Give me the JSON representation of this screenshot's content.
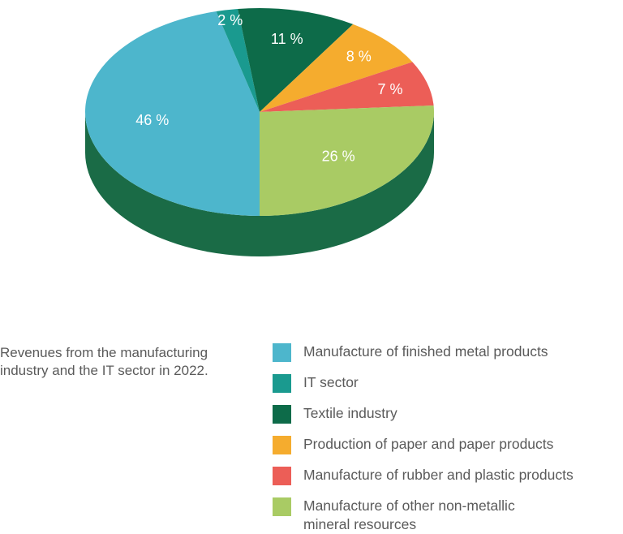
{
  "chart_data": {
    "type": "pie",
    "title": "",
    "caption_lines": [
      "Revenues from the manufacturing",
      "industry and the IT sector in 2022."
    ],
    "slices": [
      {
        "name": "Manufacture of finished metal products",
        "value": 46,
        "label": "46 %",
        "color": "#4db6cc"
      },
      {
        "name": "IT sector",
        "value": 2,
        "label": "2 %",
        "color": "#1a9a8f"
      },
      {
        "name": "Textile industry",
        "value": 11,
        "label": "11 %",
        "color": "#0d6b49"
      },
      {
        "name": "Production of paper and paper products",
        "value": 8,
        "label": "8 %",
        "color": "#f5ac2e"
      },
      {
        "name": "Manufacture of rubber and plastic products",
        "value": 7,
        "label": "7 %",
        "color": "#ec5e57"
      },
      {
        "name": "Manufacture of other non-metallic\nmineral resources",
        "value": 26,
        "label": "26 %",
        "color": "#a9cb64"
      }
    ],
    "side_color": "#1a6b46",
    "legend_position": "bottom-right",
    "three_d": true
  }
}
